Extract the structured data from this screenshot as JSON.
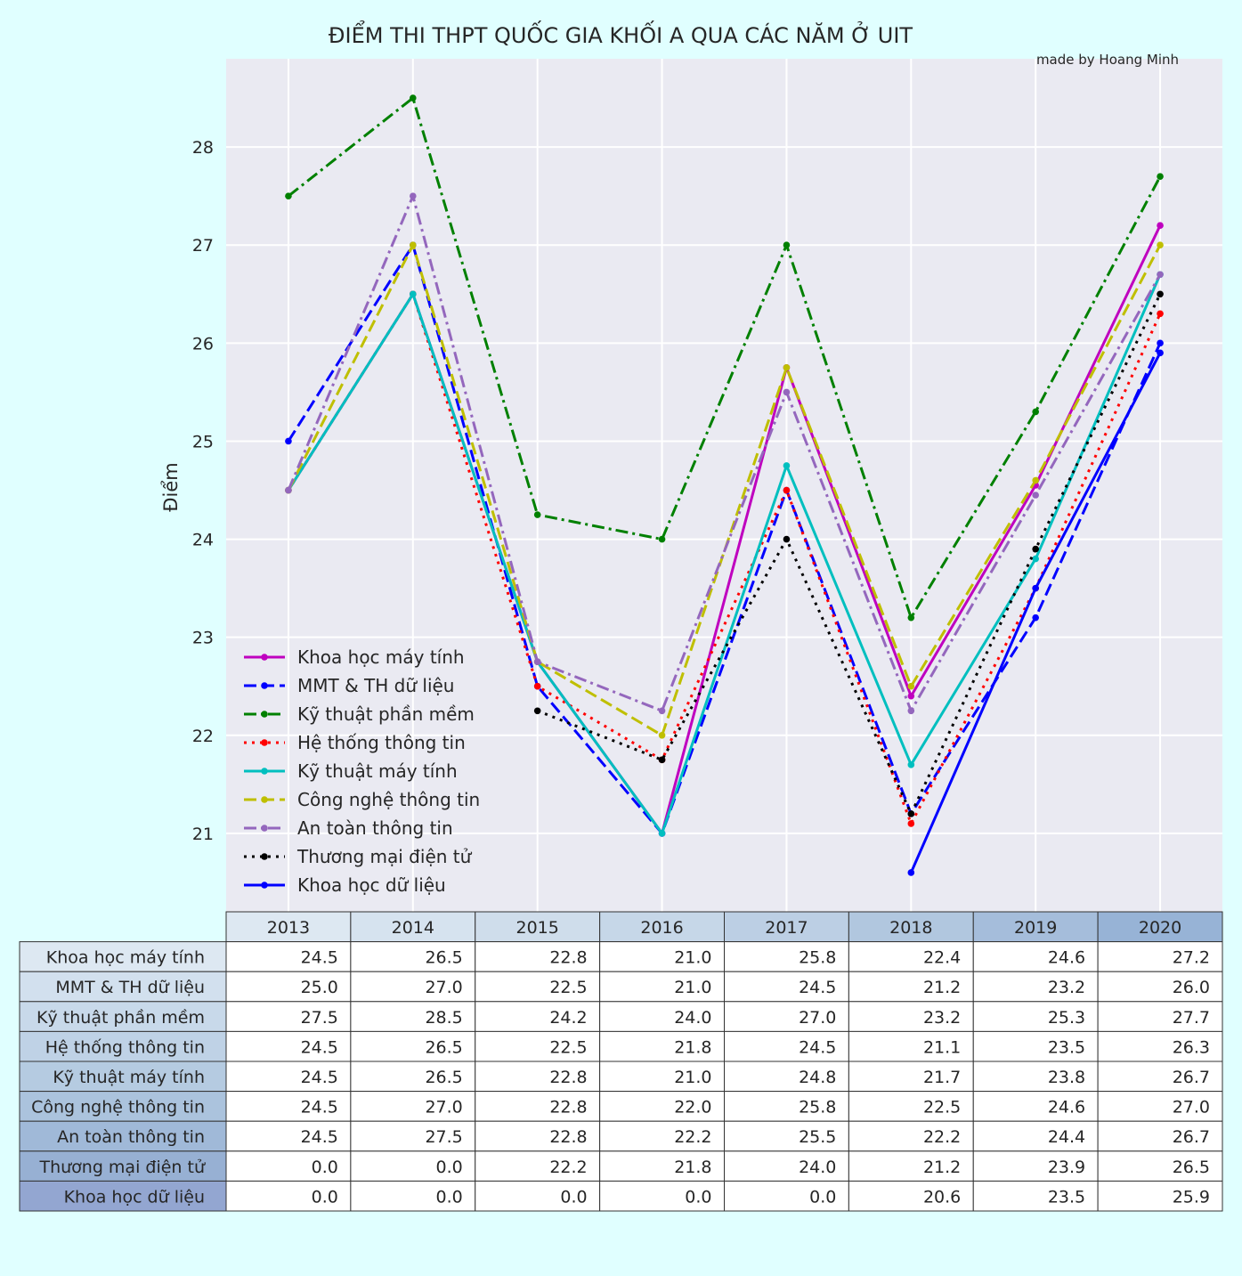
{
  "chart_data": {
    "type": "line",
    "title": "ĐIỂM THI THPT QUỐC GIA KHỐI A QUA CÁC NĂM Ở UIT",
    "annotation": "made by Hoang Minh",
    "ylabel": "Điểm",
    "xlabel": "",
    "ylim": [
      20.2,
      28.9
    ],
    "yticks": [
      "21",
      "22",
      "23",
      "24",
      "25",
      "26",
      "27",
      "28"
    ],
    "grid": true,
    "legend_position": "lower left",
    "categories": [
      "2013",
      "2014",
      "2015",
      "2016",
      "2017",
      "2018",
      "2019",
      "2020"
    ],
    "series": [
      {
        "name": "Khoa học máy tính",
        "color": "#bf00bf",
        "dash": "solid",
        "values": [
          24.5,
          26.5,
          22.75,
          21.0,
          25.75,
          22.4,
          24.55,
          27.2
        ]
      },
      {
        "name": "MMT & TH dữ liệu",
        "color": "#0000ff",
        "dash": "dashed",
        "values": [
          25.0,
          27.0,
          22.5,
          21.0,
          24.5,
          21.2,
          23.2,
          26.0
        ]
      },
      {
        "name": "Kỹ thuật phần mềm",
        "color": "#008000",
        "dash": "dashdot",
        "values": [
          27.5,
          28.5,
          24.25,
          24.0,
          27.0,
          23.2,
          25.3,
          27.7
        ]
      },
      {
        "name": "Hệ thống thông tin",
        "color": "#ff0000",
        "dash": "dotted",
        "values": [
          24.5,
          26.5,
          22.5,
          21.75,
          24.5,
          21.1,
          23.5,
          26.3
        ]
      },
      {
        "name": "Kỹ thuật máy tính",
        "color": "#00bfbf",
        "dash": "solid",
        "values": [
          24.5,
          26.5,
          22.75,
          21.0,
          24.75,
          21.7,
          23.8,
          26.7
        ]
      },
      {
        "name": "Công nghệ thông tin",
        "color": "#bfbf00",
        "dash": "dashed",
        "values": [
          24.5,
          27.0,
          22.75,
          22.0,
          25.75,
          22.5,
          24.6,
          27.0
        ]
      },
      {
        "name": "An toàn thông tin",
        "color": "#9467bd",
        "dash": "dashdot",
        "values": [
          24.5,
          27.5,
          22.75,
          22.25,
          25.5,
          22.25,
          24.45,
          26.7
        ]
      },
      {
        "name": "Thương mại điện tử",
        "color": "#000000",
        "dash": "dotted",
        "values": [
          null,
          null,
          22.25,
          21.75,
          24.0,
          21.2,
          23.9,
          26.5
        ]
      },
      {
        "name": "Khoa học dữ liệu",
        "color": "#0000ff",
        "dash": "solid",
        "values": [
          null,
          null,
          null,
          null,
          null,
          20.6,
          23.5,
          25.9
        ]
      }
    ],
    "table": {
      "header_colors": [
        "#dde8f2",
        "#d6e3ef",
        "#cfddeb",
        "#c6d7e8",
        "#bccfe4",
        "#b1c7df",
        "#a5bddb",
        "#97b3d6"
      ],
      "row_label_colors": [
        "#dde8f2",
        "#d2e0ee",
        "#c8d9ea",
        "#bfd2e6",
        "#b5cbe1",
        "#abc3dd",
        "#a0b9d8",
        "#97b0d3",
        "#93a6d1"
      ],
      "rows": [
        {
          "label": "Khoa học máy tính",
          "cells": [
            "24.5",
            "26.5",
            "22.8",
            "21.0",
            "25.8",
            "22.4",
            "24.6",
            "27.2"
          ]
        },
        {
          "label": "MMT & TH dữ liệu",
          "cells": [
            "25.0",
            "27.0",
            "22.5",
            "21.0",
            "24.5",
            "21.2",
            "23.2",
            "26.0"
          ]
        },
        {
          "label": "Kỹ thuật phần mềm",
          "cells": [
            "27.5",
            "28.5",
            "24.2",
            "24.0",
            "27.0",
            "23.2",
            "25.3",
            "27.7"
          ]
        },
        {
          "label": "Hệ thống thông tin",
          "cells": [
            "24.5",
            "26.5",
            "22.5",
            "21.8",
            "24.5",
            "21.1",
            "23.5",
            "26.3"
          ]
        },
        {
          "label": "Kỹ thuật máy tính",
          "cells": [
            "24.5",
            "26.5",
            "22.8",
            "21.0",
            "24.8",
            "21.7",
            "23.8",
            "26.7"
          ]
        },
        {
          "label": "Công nghệ thông tin",
          "cells": [
            "24.5",
            "27.0",
            "22.8",
            "22.0",
            "25.8",
            "22.5",
            "24.6",
            "27.0"
          ]
        },
        {
          "label": "An toàn thông tin",
          "cells": [
            "24.5",
            "27.5",
            "22.8",
            "22.2",
            "25.5",
            "22.2",
            "24.4",
            "26.7"
          ]
        },
        {
          "label": "Thương mại điện tử",
          "cells": [
            "0.0",
            "0.0",
            "22.2",
            "21.8",
            "24.0",
            "21.2",
            "23.9",
            "26.5"
          ]
        },
        {
          "label": "Khoa học dữ liệu",
          "cells": [
            "0.0",
            "0.0",
            "0.0",
            "0.0",
            "0.0",
            "20.6",
            "23.5",
            "25.9"
          ]
        }
      ]
    }
  }
}
